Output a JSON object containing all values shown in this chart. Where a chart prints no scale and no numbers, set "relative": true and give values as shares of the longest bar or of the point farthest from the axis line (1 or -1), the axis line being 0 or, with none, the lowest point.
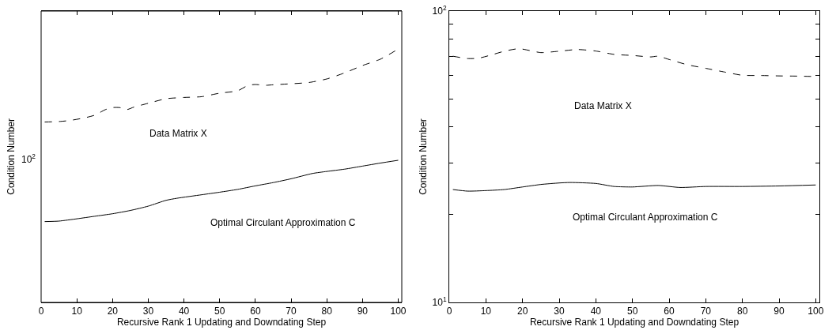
{
  "chart_data": [
    {
      "type": "line",
      "xlabel": "Recursive Rank 1 Updating and Downdating Step",
      "ylabel": "Condition Number",
      "relative": true,
      "grid": false,
      "xlim": [
        0,
        101
      ],
      "xticks": [
        0,
        10,
        20,
        30,
        40,
        50,
        60,
        70,
        80,
        90,
        100
      ],
      "annotations": [
        "10$^{2}$",
        "Data Matrix X",
        "Optimal Circulant Approximation C"
      ],
      "series": [
        {
          "color": "#000000",
          "line_style": "dashed",
          "x": [
            1,
            5,
            8,
            12,
            15,
            18,
            20,
            22,
            24,
            26,
            30,
            35,
            40,
            45,
            50,
            55,
            58,
            60,
            63,
            65,
            70,
            75,
            80,
            85,
            90,
            95,
            100
          ],
          "values": [
            0.712,
            0.714,
            0.718,
            0.728,
            0.739,
            0.761,
            0.769,
            0.769,
            0.761,
            0.771,
            0.786,
            0.804,
            0.809,
            0.812,
            0.826,
            0.835,
            0.857,
            0.86,
            0.857,
            0.859,
            0.863,
            0.868,
            0.882,
            0.906,
            0.935,
            0.96,
            1
          ]
        },
        {
          "color": "#000000",
          "line_style": "solid",
          "x": [
            1,
            5,
            10,
            15,
            20,
            25,
            30,
            35,
            38,
            45,
            50,
            55,
            60,
            65,
            70,
            76,
            80,
            85,
            90,
            95,
            100
          ],
          "values": [
            0.319,
            0.321,
            0.33,
            0.34,
            0.35,
            0.363,
            0.38,
            0.403,
            0.411,
            0.425,
            0.435,
            0.446,
            0.46,
            0.473,
            0.488,
            0.509,
            0.517,
            0.526,
            0.538,
            0.55,
            0.561
          ]
        }
      ]
    },
    {
      "type": "line",
      "xlabel": "Recursive Rank 1 Updating and Downdating Step",
      "ylabel": "Condition Number",
      "log": "y",
      "grid": false,
      "xlim": [
        0,
        101
      ],
      "ylim": [
        10,
        100
      ],
      "xticks": [
        0,
        10,
        20,
        30,
        40,
        50,
        60,
        70,
        80,
        90,
        100
      ],
      "yticks": [
        {
          "value": 10,
          "label": "10$^{1}$"
        },
        {
          "value": 20,
          "label": null
        },
        {
          "value": 30,
          "label": null
        },
        {
          "value": 40,
          "label": null
        },
        {
          "value": 50,
          "label": null
        },
        {
          "value": 60,
          "label": null
        },
        {
          "value": 70,
          "label": null
        },
        {
          "value": 80,
          "label": null
        },
        {
          "value": 90,
          "label": null
        },
        {
          "value": 100,
          "label": "10$^{2}$"
        }
      ],
      "annotations": [
        "Data Matrix X",
        "Optimal Circulant Approximation C"
      ],
      "series": [
        {
          "color": "#000000",
          "line_style": "dashed",
          "x": [
            1,
            5,
            8,
            12,
            15,
            19,
            22,
            25,
            30,
            35,
            40,
            45,
            50,
            55,
            57,
            60,
            65,
            70,
            75,
            80,
            85,
            90,
            95,
            100
          ],
          "values": [
            70,
            68.7,
            68.9,
            71,
            72.8,
            74.3,
            73.2,
            72,
            72.8,
            73.8,
            72.9,
            71,
            70.4,
            69.6,
            70,
            68.2,
            65.4,
            63.6,
            61.8,
            60.2,
            60.1,
            59.9,
            59.8,
            59.6
          ]
        },
        {
          "color": "#000000",
          "line_style": "solid",
          "x": [
            1,
            5,
            10,
            15,
            20,
            25,
            30,
            33,
            40,
            45,
            50,
            57,
            63,
            70,
            80,
            90,
            100
          ],
          "values": [
            24.4,
            24.1,
            24.2,
            24.4,
            24.9,
            25.4,
            25.7,
            25.8,
            25.6,
            25,
            24.9,
            25.2,
            24.8,
            25,
            25,
            25.1,
            25.3
          ]
        }
      ]
    }
  ]
}
